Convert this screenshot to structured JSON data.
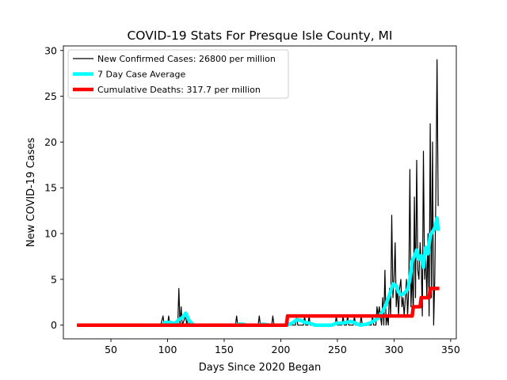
{
  "chart_data": {
    "type": "line",
    "title": "COVID-19 Stats For Presque Isle County, MI",
    "xlabel": "Days Since 2020 Began",
    "ylabel": "New COVID-19 Cases",
    "xlim": [
      8,
      355
    ],
    "ylim": [
      -1.5,
      30.5
    ],
    "xticks": [
      50,
      100,
      150,
      200,
      250,
      300,
      350
    ],
    "yticks": [
      0,
      5,
      10,
      15,
      20,
      25,
      30
    ],
    "grid": false,
    "legend_position": "top-left",
    "series": [
      {
        "name": "New Confirmed Cases: 26800 per million",
        "color": "#000000",
        "points": [
          [
            20,
            0
          ],
          [
            94,
            0
          ],
          [
            96,
            1
          ],
          [
            97,
            0
          ],
          [
            100,
            0
          ],
          [
            101,
            1
          ],
          [
            102,
            0
          ],
          [
            109,
            0
          ],
          [
            110,
            4
          ],
          [
            111,
            0
          ],
          [
            112,
            2
          ],
          [
            113,
            0
          ],
          [
            116,
            1
          ],
          [
            117,
            0
          ],
          [
            118,
            1
          ],
          [
            119,
            0
          ],
          [
            160,
            0
          ],
          [
            161,
            1
          ],
          [
            162,
            0
          ],
          [
            180,
            0
          ],
          [
            181,
            1
          ],
          [
            182,
            0
          ],
          [
            192,
            0
          ],
          [
            193,
            1
          ],
          [
            194,
            0
          ],
          [
            205,
            0
          ],
          [
            206,
            1
          ],
          [
            207,
            0
          ],
          [
            213,
            0
          ],
          [
            214,
            1
          ],
          [
            215,
            0
          ],
          [
            220,
            0
          ],
          [
            221,
            1
          ],
          [
            222,
            0
          ],
          [
            224,
            0
          ],
          [
            225,
            1
          ],
          [
            226,
            0
          ],
          [
            248,
            0
          ],
          [
            249,
            1
          ],
          [
            250,
            0
          ],
          [
            254,
            0
          ],
          [
            255,
            1
          ],
          [
            256,
            0
          ],
          [
            258,
            0
          ],
          [
            259,
            1
          ],
          [
            260,
            0
          ],
          [
            264,
            0
          ],
          [
            265,
            1
          ],
          [
            266,
            0
          ],
          [
            270,
            0
          ],
          [
            271,
            1
          ],
          [
            272,
            0
          ],
          [
            280,
            0
          ],
          [
            281,
            1
          ],
          [
            282,
            0
          ],
          [
            284,
            0
          ],
          [
            285,
            2
          ],
          [
            286,
            1
          ],
          [
            287,
            2
          ],
          [
            288,
            1
          ],
          [
            289,
            0
          ],
          [
            290,
            3
          ],
          [
            291,
            0
          ],
          [
            292,
            6
          ],
          [
            293,
            0
          ],
          [
            294,
            1
          ],
          [
            295,
            0
          ],
          [
            296,
            4
          ],
          [
            297,
            1
          ],
          [
            298,
            12
          ],
          [
            299,
            3
          ],
          [
            300,
            5
          ],
          [
            301,
            9
          ],
          [
            302,
            2
          ],
          [
            303,
            4
          ],
          [
            304,
            1
          ],
          [
            305,
            4
          ],
          [
            306,
            5
          ],
          [
            307,
            2
          ],
          [
            308,
            3
          ],
          [
            309,
            1
          ],
          [
            310,
            3
          ],
          [
            311,
            5
          ],
          [
            312,
            1
          ],
          [
            313,
            4
          ],
          [
            314,
            17
          ],
          [
            315,
            2
          ],
          [
            316,
            6
          ],
          [
            317,
            1
          ],
          [
            318,
            14
          ],
          [
            319,
            3
          ],
          [
            320,
            18
          ],
          [
            321,
            6
          ],
          [
            322,
            5
          ],
          [
            323,
            9
          ],
          [
            324,
            7
          ],
          [
            325,
            1
          ],
          [
            326,
            19
          ],
          [
            327,
            5
          ],
          [
            328,
            8
          ],
          [
            329,
            3
          ],
          [
            330,
            10
          ],
          [
            331,
            1
          ],
          [
            332,
            22
          ],
          [
            333,
            3
          ],
          [
            334,
            20
          ],
          [
            335,
            0
          ],
          [
            336,
            5
          ],
          [
            337,
            15
          ],
          [
            338,
            29
          ],
          [
            339,
            13
          ]
        ]
      },
      {
        "name": "7 Day Case Average",
        "color": "#00ffff",
        "points": [
          [
            20,
            0
          ],
          [
            95,
            0
          ],
          [
            98,
            0.3
          ],
          [
            103,
            0.3
          ],
          [
            106,
            0.1
          ],
          [
            110,
            0.6
          ],
          [
            113,
            0.8
          ],
          [
            116,
            1.3
          ],
          [
            119,
            0.5
          ],
          [
            123,
            0
          ],
          [
            160,
            0
          ],
          [
            163,
            0.1
          ],
          [
            166,
            0.1
          ],
          [
            170,
            0
          ],
          [
            180,
            0
          ],
          [
            184,
            0.1
          ],
          [
            190,
            0
          ],
          [
            205,
            0
          ],
          [
            208,
            0.1
          ],
          [
            211,
            0.3
          ],
          [
            214,
            0.6
          ],
          [
            218,
            0.5
          ],
          [
            221,
            0.3
          ],
          [
            226,
            0.2
          ],
          [
            230,
            0
          ],
          [
            245,
            0
          ],
          [
            249,
            0.2
          ],
          [
            254,
            0.2
          ],
          [
            258,
            0.3
          ],
          [
            262,
            0.4
          ],
          [
            266,
            0.2
          ],
          [
            270,
            0
          ],
          [
            276,
            0.1
          ],
          [
            280,
            0.3
          ],
          [
            284,
            0.6
          ],
          [
            287,
            0.9
          ],
          [
            290,
            1.5
          ],
          [
            293,
            2.3
          ],
          [
            296,
            3.3
          ],
          [
            299,
            4.5
          ],
          [
            302,
            4.3
          ],
          [
            304,
            3.6
          ],
          [
            306,
            3.3
          ],
          [
            308,
            3.4
          ],
          [
            310,
            3.6
          ],
          [
            312,
            3.9
          ],
          [
            314,
            5
          ],
          [
            316,
            7
          ],
          [
            318,
            7.5
          ],
          [
            320,
            8.2
          ],
          [
            322,
            7.2
          ],
          [
            324,
            7.6
          ],
          [
            326,
            6.3
          ],
          [
            328,
            8.5
          ],
          [
            330,
            7.8
          ],
          [
            332,
            9.8
          ],
          [
            334,
            10.2
          ],
          [
            336,
            10.6
          ],
          [
            338,
            11.7
          ],
          [
            339,
            10.3
          ]
        ]
      },
      {
        "name": "Cumulative Deaths: 317.7 per million",
        "color": "#ff0000",
        "points": [
          [
            20,
            0
          ],
          [
            205,
            0
          ],
          [
            206,
            1
          ],
          [
            316,
            1
          ],
          [
            317,
            2
          ],
          [
            323,
            2
          ],
          [
            324,
            3
          ],
          [
            331,
            3
          ],
          [
            332,
            4
          ],
          [
            340,
            4
          ]
        ]
      }
    ]
  }
}
